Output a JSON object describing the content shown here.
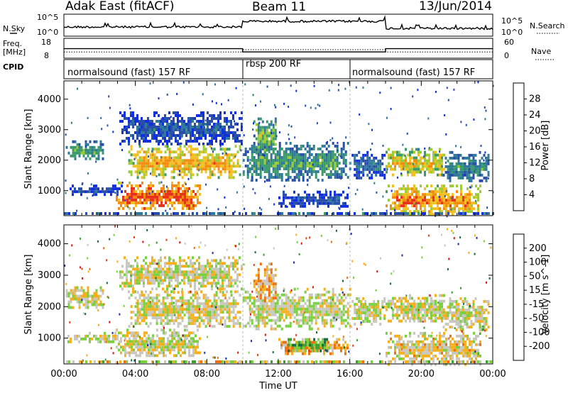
{
  "header": {
    "title_left": "Adak East (fitACF)",
    "title_center": "Beam 11",
    "title_right": "13/Jun/2014"
  },
  "ancillary": {
    "nsky_label": "N.Sky",
    "nsearch_label": "N.Search",
    "freq_label": "Freq.",
    "freq_unit": "[MHz]",
    "nave_label": "Nave",
    "cpid_label": "CPID",
    "noise_ticks_left": [
      "10^5",
      "10^0"
    ],
    "noise_ticks_right": [
      "10^5",
      "10^0"
    ],
    "freq_ticks": [
      "18",
      "8"
    ],
    "nave_ticks": [
      "60",
      "0"
    ],
    "cpid_segments": [
      {
        "start_hour": 0,
        "end_hour": 10,
        "label": "normalsound (fast) 157 RF"
      },
      {
        "start_hour": 10,
        "end_hour": 16,
        "label": "rbsp 200 RF"
      },
      {
        "start_hour": 16,
        "end_hour": 24,
        "label": "normalsound (fast) 157 RF"
      }
    ],
    "freq_trace": [
      {
        "start_hour": 0,
        "end_hour": 10,
        "mhz": 12.3
      },
      {
        "start_hour": 10,
        "end_hour": 18,
        "mhz": 10.2
      },
      {
        "start_hour": 18,
        "end_hour": 24,
        "mhz": 12.3
      }
    ],
    "nave_trace": [
      {
        "start_hour": 0,
        "end_hour": 10,
        "value": 17
      },
      {
        "start_hour": 10,
        "end_hour": 18,
        "value": 25
      },
      {
        "start_hour": 18,
        "end_hour": 24,
        "value": 17
      }
    ]
  },
  "chart_data": [
    {
      "type": "heatmap",
      "name": "power",
      "ylabel": "Slant Range [km]",
      "xlabel": "",
      "xlim_hours": [
        0,
        24
      ],
      "ylim_km": [
        180,
        4600
      ],
      "yticks": [
        "1000",
        "2000",
        "3000",
        "4000"
      ],
      "colorbar_label": "Power [dB]",
      "colorbar_ticks": [
        "4",
        "8",
        "12",
        "16",
        "20",
        "24",
        "28"
      ],
      "colorbar_range": [
        0,
        32
      ],
      "colors": [
        "#1030e0",
        "#2a4fa8",
        "#2f7a9a",
        "#3a9a6a",
        "#9acb35",
        "#f0c020",
        "#f58a10",
        "#e8301a"
      ],
      "bands": [
        {
          "t0": 0.1,
          "t1": 2.2,
          "r0": 2000,
          "r1": 2650,
          "level": 0.5
        },
        {
          "t0": 3.1,
          "t1": 10.0,
          "r0": 2500,
          "r1": 3600,
          "level": 0.25
        },
        {
          "t0": 3.6,
          "t1": 9.9,
          "r0": 1400,
          "r1": 2500,
          "level": 0.75
        },
        {
          "t0": 2.9,
          "t1": 7.6,
          "r0": 400,
          "r1": 1300,
          "level": 0.92
        },
        {
          "t0": 0.2,
          "t1": 3.2,
          "r0": 900,
          "r1": 1200,
          "level": 0.2
        },
        {
          "t0": 10.0,
          "t1": 16.0,
          "r0": 1300,
          "r1": 2600,
          "level": 0.45
        },
        {
          "t0": 10.6,
          "t1": 11.9,
          "r0": 2200,
          "r1": 3400,
          "level": 0.55
        },
        {
          "t0": 12.0,
          "t1": 15.9,
          "r0": 500,
          "r1": 1000,
          "level": 0.22
        },
        {
          "t0": 16.1,
          "t1": 17.9,
          "r0": 1400,
          "r1": 2300,
          "level": 0.3
        },
        {
          "t0": 18.0,
          "t1": 21.3,
          "r0": 1500,
          "r1": 2400,
          "level": 0.7
        },
        {
          "t0": 18.0,
          "t1": 23.3,
          "r0": 200,
          "r1": 1200,
          "level": 0.82
        },
        {
          "t0": 21.2,
          "t1": 23.8,
          "r0": 1300,
          "r1": 2300,
          "level": 0.4
        }
      ]
    },
    {
      "type": "heatmap",
      "name": "velocity",
      "ylabel": "Slant Range [km]",
      "xlabel": "Time UT",
      "xlim_hours": [
        0,
        24
      ],
      "ylim_km": [
        180,
        4600
      ],
      "xticks": [
        "00:00",
        "04:00",
        "08:00",
        "12:00",
        "16:00",
        "20:00",
        "00:00"
      ],
      "yticks": [
        "1000",
        "2000",
        "3000",
        "4000"
      ],
      "colorbar_label": "Velocity [m s^-1]",
      "colorbar_ticks": [
        "200",
        "100",
        "50",
        "15",
        "-15",
        "-50",
        "-100",
        "-200"
      ],
      "colorbar_range": [
        -250,
        250
      ],
      "colors": [
        "#2030b0",
        "#1a6a40",
        "#3aa030",
        "#7ad040",
        "#c8c8c0",
        "#f5b020",
        "#f07010",
        "#e84018",
        "#e01010"
      ],
      "bands": [
        {
          "t0": 0.1,
          "t1": 2.2,
          "r0": 2000,
          "r1": 2650,
          "level": 0.52
        },
        {
          "t0": 3.1,
          "t1": 10.0,
          "r0": 2500,
          "r1": 3600,
          "level": 0.5
        },
        {
          "t0": 3.6,
          "t1": 9.9,
          "r0": 1400,
          "r1": 2500,
          "level": 0.52
        },
        {
          "t0": 2.9,
          "t1": 7.6,
          "r0": 400,
          "r1": 1300,
          "level": 0.5
        },
        {
          "t0": 0.2,
          "t1": 3.2,
          "r0": 900,
          "r1": 1200,
          "level": 0.5
        },
        {
          "t0": 10.0,
          "t1": 16.0,
          "r0": 1300,
          "r1": 2600,
          "level": 0.48
        },
        {
          "t0": 10.6,
          "t1": 11.9,
          "r0": 2200,
          "r1": 3400,
          "level": 0.62
        },
        {
          "t0": 12.0,
          "t1": 15.9,
          "r0": 500,
          "r1": 1000,
          "level": 0.64
        },
        {
          "t0": 12.4,
          "t1": 14.8,
          "r0": 600,
          "r1": 1000,
          "level": 0.3
        },
        {
          "t0": 16.1,
          "t1": 17.9,
          "r0": 1400,
          "r1": 2300,
          "level": 0.5
        },
        {
          "t0": 18.0,
          "t1": 21.3,
          "r0": 1500,
          "r1": 2400,
          "level": 0.5
        },
        {
          "t0": 18.0,
          "t1": 23.3,
          "r0": 200,
          "r1": 1200,
          "level": 0.55
        },
        {
          "t0": 21.2,
          "t1": 23.8,
          "r0": 1300,
          "r1": 2300,
          "level": 0.5
        }
      ]
    }
  ]
}
